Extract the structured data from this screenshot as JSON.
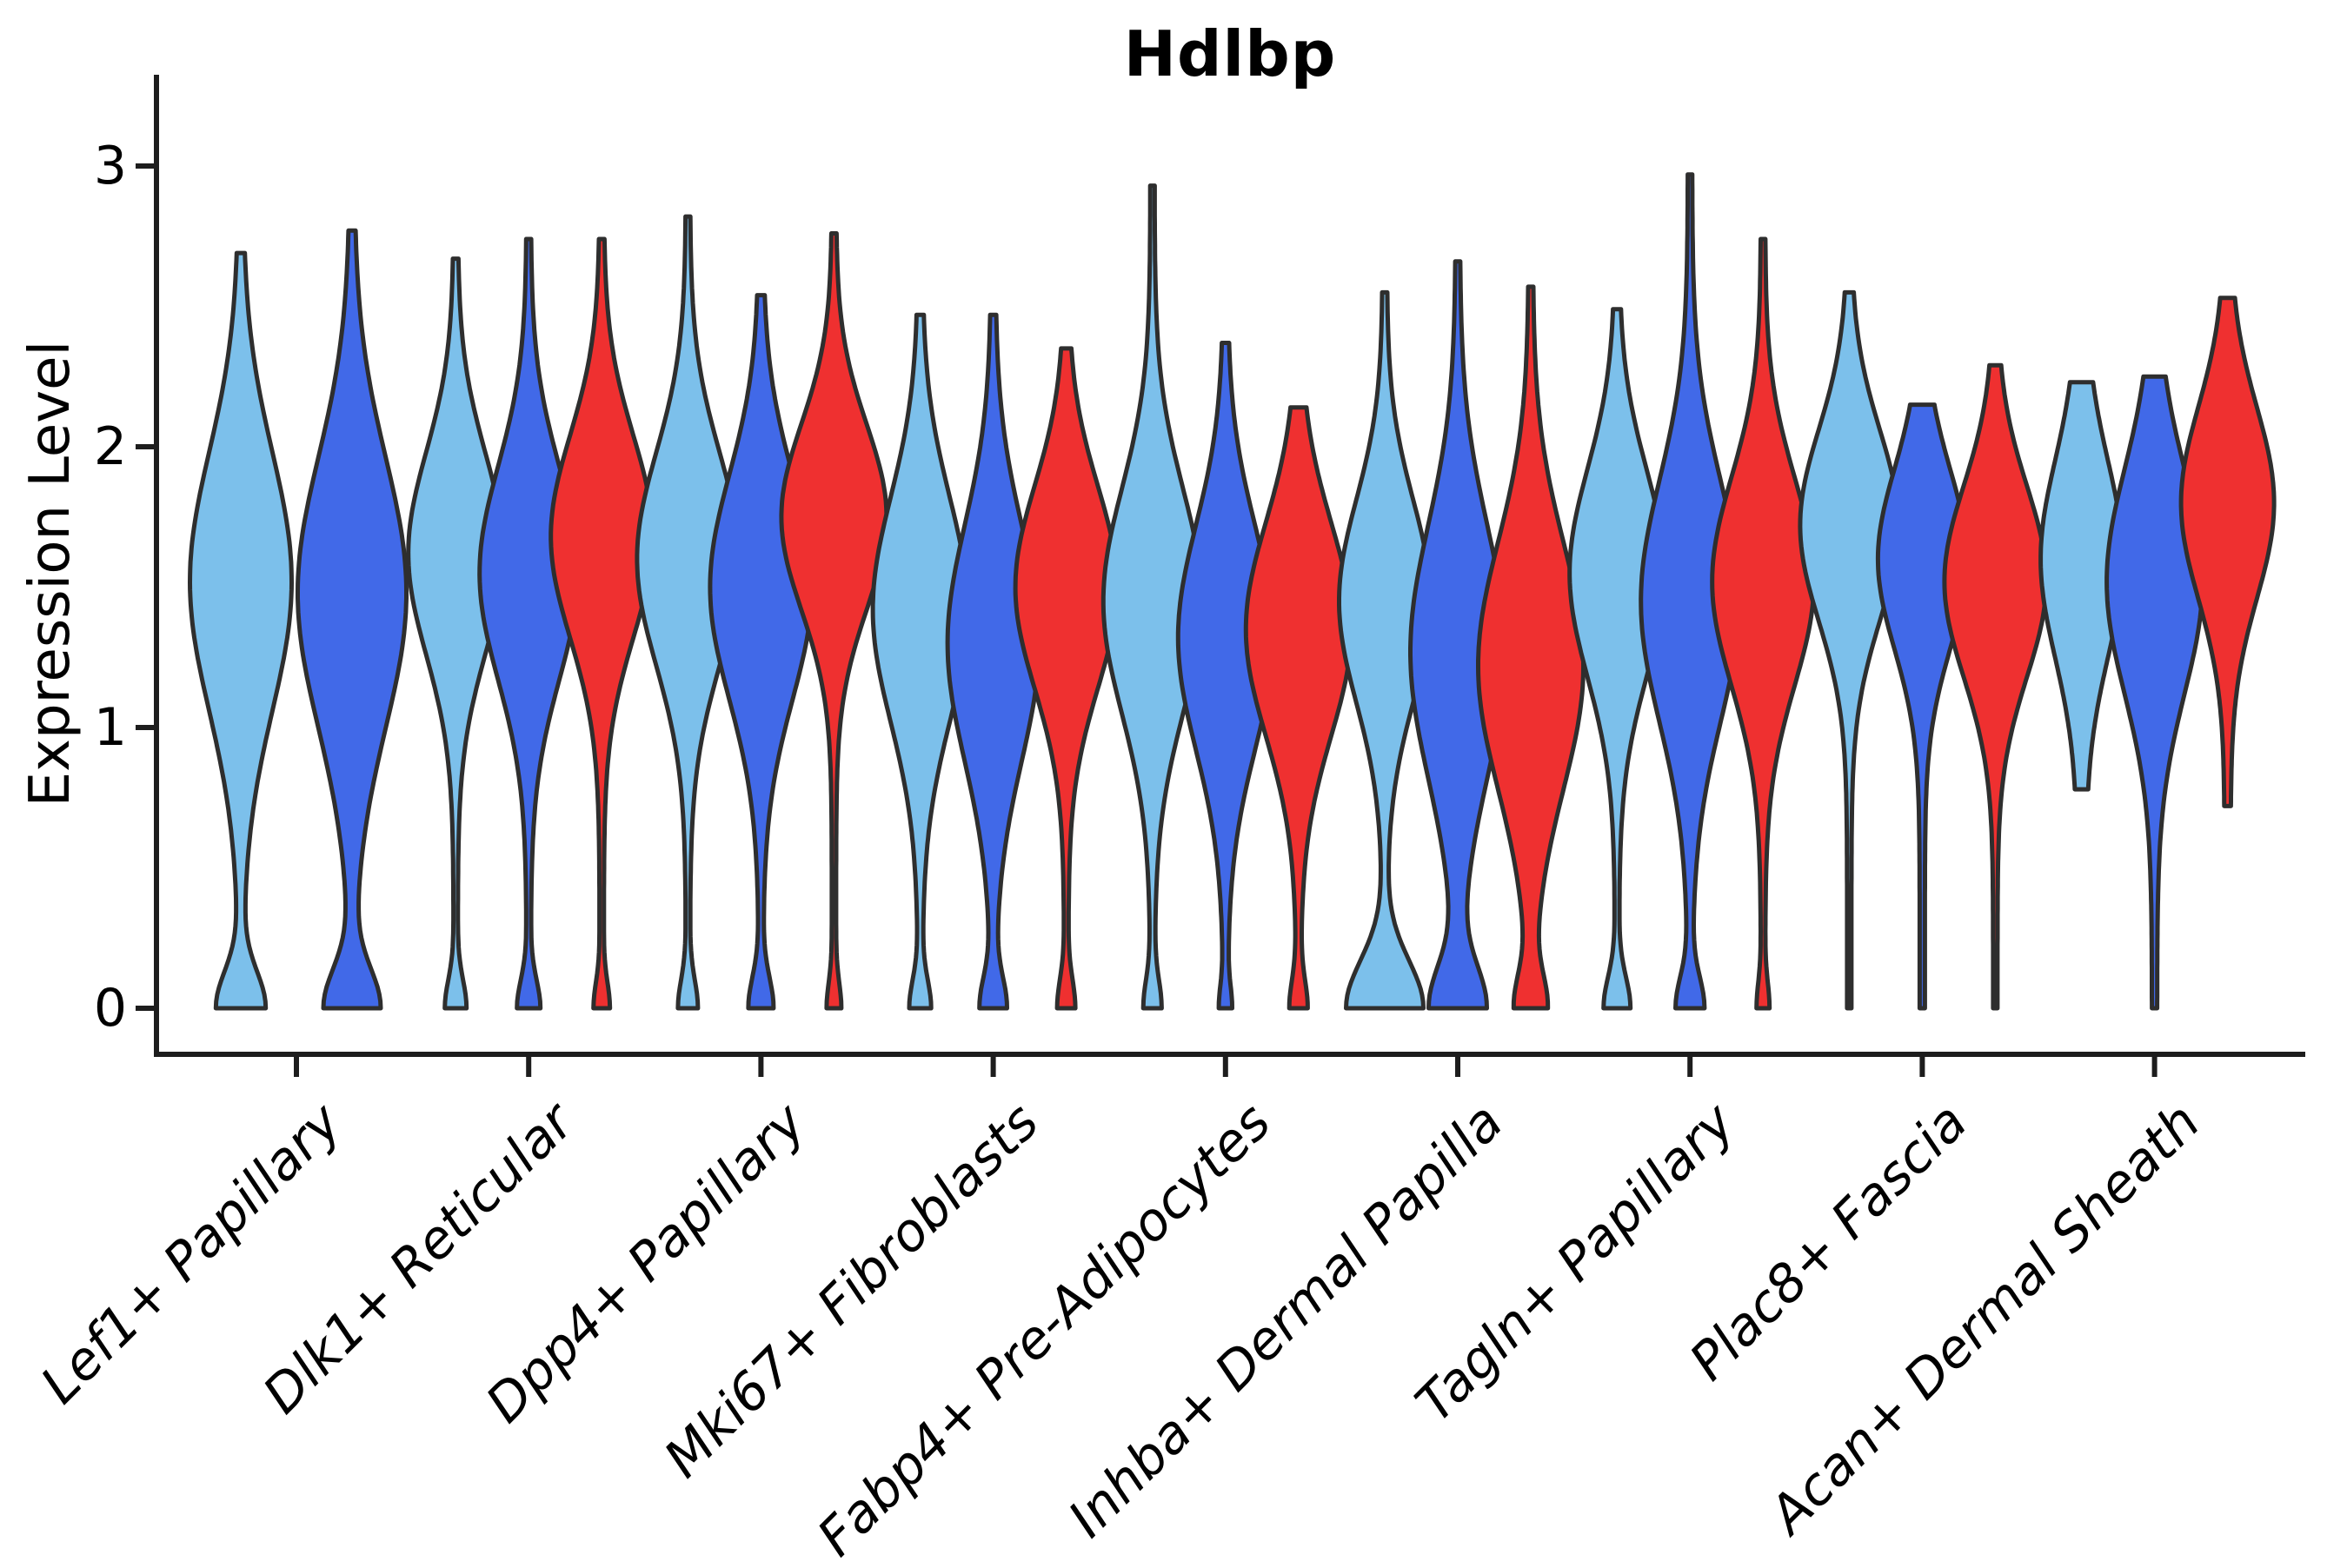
{
  "title": "Hdlbp",
  "y_axis": {
    "label": "Expression Level",
    "ticks": [
      "0",
      "1",
      "2",
      "3"
    ]
  },
  "x_axis": {
    "categories": [
      "Lef1+ Papillary",
      "Dlk1+ Reticular",
      "Dpp4+ Papillary",
      "Mki67+ Fibroblasts",
      "Fabp4+ Pre-Adipocytes",
      "Inhba+ Dermal Papilla",
      "Tagln+ Papillary",
      "Plac8+ Fascia",
      "Acan+ Dermal Sheath"
    ]
  },
  "chart_data": {
    "type": "violin",
    "title": "Hdlbp",
    "xlabel": "",
    "ylabel": "Expression Level",
    "ylim": [
      0,
      3.1
    ],
    "yticks": [
      0,
      1,
      2,
      3
    ],
    "grid": false,
    "legend": "none",
    "palette": {
      "skyblue": "#7CC0EB",
      "royalblue": "#4169E8",
      "red": "#EF3030",
      "outline": "#2E2E2E"
    },
    "categories": [
      "Lef1+ Papillary",
      "Dlk1+ Reticular",
      "Dpp4+ Papillary",
      "Mki67+ Fibroblasts",
      "Fabp4+ Pre-Adipocytes",
      "Inhba+ Dermal Papilla",
      "Tagln+ Papillary",
      "Plac8+ Fascia",
      "Acan+ Dermal Sheath"
    ],
    "groups": [
      {
        "category": "Lef1+ Papillary",
        "violins": [
          {
            "color": "skyblue",
            "min": 0,
            "max": 2.69,
            "peak": 1.52,
            "spread": 0.46,
            "amp": 56,
            "foot": 26,
            "foot_spread": 0.13,
            "stem": 2.5
          },
          {
            "color": "royalblue",
            "min": 0,
            "max": 2.77,
            "peak": 1.48,
            "spread": 0.48,
            "amp": 60,
            "foot": 30,
            "foot_spread": 0.14,
            "stem": 2.5
          }
        ]
      },
      {
        "category": "Dlk1+ Reticular",
        "violins": [
          {
            "color": "skyblue",
            "min": 0,
            "max": 2.67,
            "peak": 1.62,
            "spread": 0.36,
            "amp": 52,
            "foot": 10,
            "foot_spread": 0.1,
            "stem": 2.5
          },
          {
            "color": "royalblue",
            "min": 0,
            "max": 2.74,
            "peak": 1.55,
            "spread": 0.38,
            "amp": 54,
            "foot": 11,
            "foot_spread": 0.1,
            "stem": 2.5
          },
          {
            "color": "red",
            "min": 0,
            "max": 2.74,
            "peak": 1.68,
            "spread": 0.36,
            "amp": 56,
            "foot": 7,
            "foot_spread": 0.09,
            "stem": 2.5
          }
        ]
      },
      {
        "category": "Dpp4+ Papillary",
        "violins": [
          {
            "color": "skyblue",
            "min": 0,
            "max": 2.82,
            "peak": 1.6,
            "spread": 0.38,
            "amp": 56,
            "foot": 9,
            "foot_spread": 0.1,
            "stem": 2.5
          },
          {
            "color": "royalblue",
            "min": 0,
            "max": 2.54,
            "peak": 1.5,
            "spread": 0.4,
            "amp": 56,
            "foot": 12,
            "foot_spread": 0.11,
            "stem": 2.5
          },
          {
            "color": "red",
            "min": 0,
            "max": 2.76,
            "peak": 1.75,
            "spread": 0.33,
            "amp": 58,
            "foot": 6,
            "foot_spread": 0.09,
            "stem": 2.5
          }
        ]
      },
      {
        "category": "Mki67+ Fibroblasts",
        "violins": [
          {
            "color": "skyblue",
            "min": 0,
            "max": 2.47,
            "peak": 1.42,
            "spread": 0.4,
            "amp": 52,
            "foot": 10,
            "foot_spread": 0.1,
            "stem": 2.5
          },
          {
            "color": "royalblue",
            "min": 0,
            "max": 2.47,
            "peak": 1.3,
            "spread": 0.42,
            "amp": 50,
            "foot": 13,
            "foot_spread": 0.11,
            "stem": 2.5
          },
          {
            "color": "red",
            "min": 0,
            "max": 2.35,
            "peak": 1.5,
            "spread": 0.36,
            "amp": 56,
            "foot": 8,
            "foot_spread": 0.1,
            "stem": 2.5
          }
        ]
      },
      {
        "category": "Fabp4+ Pre-Adipocytes",
        "violins": [
          {
            "color": "skyblue",
            "min": 0,
            "max": 2.93,
            "peak": 1.45,
            "spread": 0.4,
            "amp": 54,
            "foot": 8,
            "foot_spread": 0.1,
            "stem": 2.5
          },
          {
            "color": "royalblue",
            "min": 0,
            "max": 2.37,
            "peak": 1.32,
            "spread": 0.4,
            "amp": 52,
            "foot": 5,
            "foot_spread": 0.08,
            "stem": 2.5
          },
          {
            "color": "red",
            "min": 0,
            "max": 2.14,
            "peak": 1.35,
            "spread": 0.38,
            "amp": 58,
            "foot": 8,
            "foot_spread": 0.1,
            "stem": 2.5
          }
        ]
      },
      {
        "category": "Inhba+ Dermal Papilla",
        "violins": [
          {
            "color": "skyblue",
            "min": 0,
            "max": 2.55,
            "peak": 1.45,
            "spread": 0.36,
            "amp": 50,
            "foot": 42,
            "foot_spread": 0.17,
            "stem": 2.5
          },
          {
            "color": "royalblue",
            "min": 0,
            "max": 2.66,
            "peak": 1.27,
            "spread": 0.45,
            "amp": 52,
            "foot": 30,
            "foot_spread": 0.15,
            "stem": 2.5
          },
          {
            "color": "red",
            "min": 0,
            "max": 2.57,
            "peak": 1.22,
            "spread": 0.44,
            "amp": 58,
            "foot": 16,
            "foot_spread": 0.12,
            "stem": 2.5
          }
        ]
      },
      {
        "category": "Tagln+ Papillary",
        "violins": [
          {
            "color": "skyblue",
            "min": 0,
            "max": 2.49,
            "peak": 1.55,
            "spread": 0.37,
            "amp": 52,
            "foot": 13,
            "foot_spread": 0.11,
            "stem": 2.5
          },
          {
            "color": "royalblue",
            "min": 0,
            "max": 2.97,
            "peak": 1.45,
            "spread": 0.43,
            "amp": 54,
            "foot": 14,
            "foot_spread": 0.11,
            "stem": 2.5
          },
          {
            "color": "red",
            "min": 0,
            "max": 2.74,
            "peak": 1.52,
            "spread": 0.37,
            "amp": 56,
            "foot": 5,
            "foot_spread": 0.09,
            "stem": 2.5
          }
        ]
      },
      {
        "category": "Plac8+ Fascia",
        "violins": [
          {
            "color": "skyblue",
            "min": 0,
            "max": 2.55,
            "peak": 1.72,
            "spread": 0.34,
            "amp": 54,
            "foot": 0,
            "foot_spread": 0.1,
            "stem": 2.5
          },
          {
            "color": "royalblue",
            "min": 0,
            "max": 2.15,
            "peak": 1.6,
            "spread": 0.32,
            "amp": 48,
            "foot": 0,
            "foot_spread": 0.1,
            "stem": 3.0
          },
          {
            "color": "red",
            "min": 0,
            "max": 2.29,
            "peak": 1.52,
            "spread": 0.34,
            "amp": 56,
            "foot": 0,
            "foot_spread": 0.1,
            "stem": 2.5
          }
        ]
      },
      {
        "category": "Acan+ Dermal Sheath",
        "violins": [
          {
            "color": "skyblue",
            "min": 0.78,
            "max": 2.23,
            "peak": 1.6,
            "spread": 0.35,
            "amp": 42,
            "foot": 0,
            "foot_spread": 0.1,
            "stem": 5.0
          },
          {
            "color": "royalblue",
            "min": 0,
            "max": 2.25,
            "peak": 1.52,
            "spread": 0.4,
            "amp": 52,
            "foot": 0,
            "foot_spread": 0.1,
            "stem": 3.0
          },
          {
            "color": "red",
            "min": 0.72,
            "max": 2.53,
            "peak": 1.8,
            "spread": 0.34,
            "amp": 50,
            "foot": 0,
            "foot_spread": 0.1,
            "stem": 3.5
          }
        ]
      }
    ]
  }
}
